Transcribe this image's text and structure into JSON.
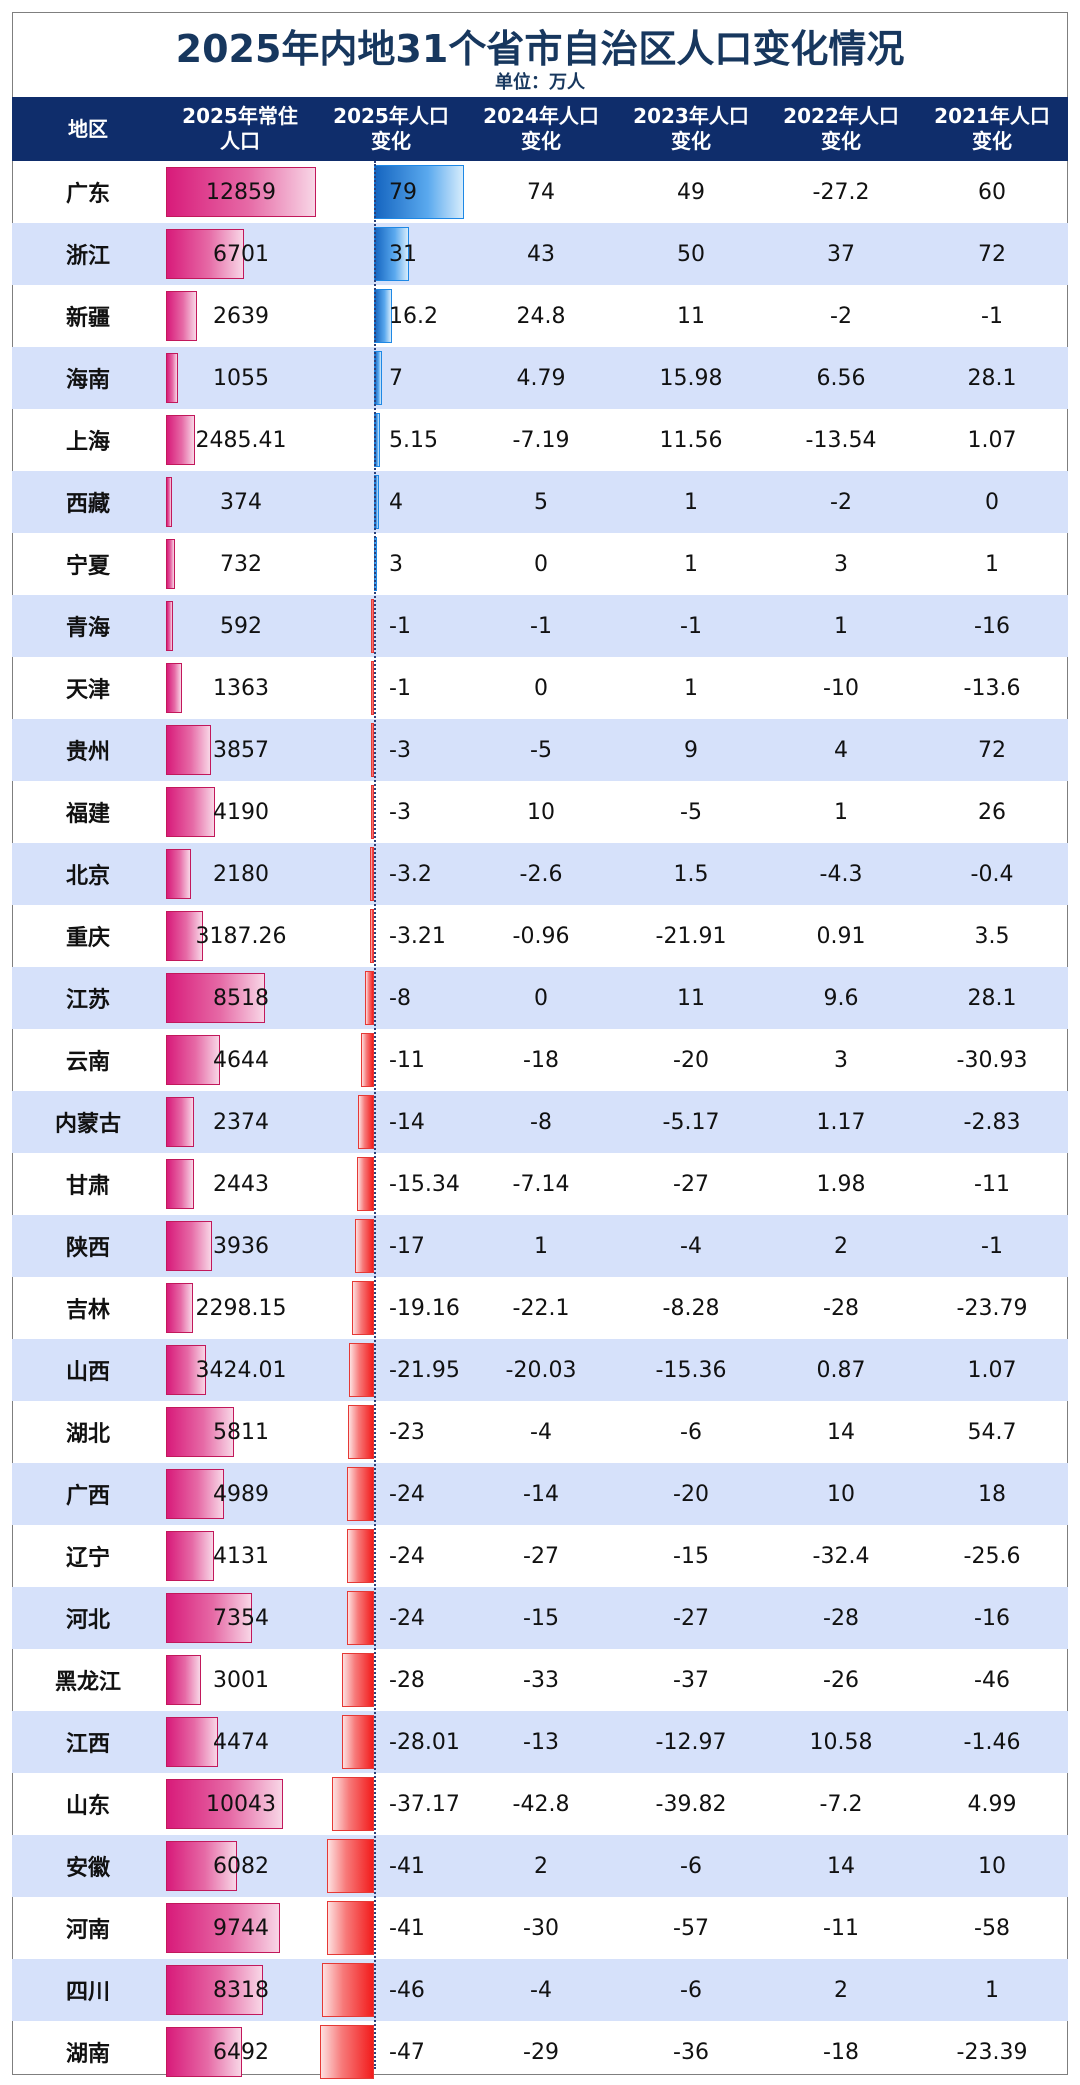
{
  "title": "2025年内地31个省市自治区人口变化情况",
  "unit": "单位：万人",
  "headers": [
    "地区",
    "2025年常住\n人口",
    "2025年人口\n变化",
    "2024年人口\n变化",
    "2023年人口\n变化",
    "2022年人口\n变化",
    "2021年人口\n变化"
  ],
  "colors": {
    "header_bg": "#0f2d6b",
    "title": "#17375e",
    "row_alt": "#d6e1fa",
    "pop_bar": "#d81b7a",
    "pos_bar": "#1e88e5",
    "neg_bar": "#f21c1c"
  },
  "chart_data": {
    "type": "table",
    "columns": [
      "地区",
      "2025年常住人口",
      "2025年人口变化",
      "2024年人口变化",
      "2023年人口变化",
      "2022年人口变化",
      "2021年人口变化"
    ],
    "rows": [
      [
        "广东",
        "12859",
        "79",
        "74",
        "49",
        "-27.2",
        "60"
      ],
      [
        "浙江",
        "6701",
        "31",
        "43",
        "50",
        "37",
        "72"
      ],
      [
        "新疆",
        "2639",
        "16.2",
        "24.8",
        "11",
        "-2",
        "-1"
      ],
      [
        "海南",
        "1055",
        "7",
        "4.79",
        "15.98",
        "6.56",
        "28.1"
      ],
      [
        "上海",
        "2485.41",
        "5.15",
        "-7.19",
        "11.56",
        "-13.54",
        "1.07"
      ],
      [
        "西藏",
        "374",
        "4",
        "5",
        "1",
        "-2",
        "0"
      ],
      [
        "宁夏",
        "732",
        "3",
        "0",
        "1",
        "3",
        "1"
      ],
      [
        "青海",
        "592",
        "-1",
        "-1",
        "-1",
        "1",
        "-16"
      ],
      [
        "天津",
        "1363",
        "-1",
        "0",
        "1",
        "-10",
        "-13.6"
      ],
      [
        "贵州",
        "3857",
        "-3",
        "-5",
        "9",
        "4",
        "72"
      ],
      [
        "福建",
        "4190",
        "-3",
        "10",
        "-5",
        "1",
        "26"
      ],
      [
        "北京",
        "2180",
        "-3.2",
        "-2.6",
        "1.5",
        "-4.3",
        "-0.4"
      ],
      [
        "重庆",
        "3187.26",
        "-3.21",
        "-0.96",
        "-21.91",
        "0.91",
        "3.5"
      ],
      [
        "江苏",
        "8518",
        "-8",
        "0",
        "11",
        "9.6",
        "28.1"
      ],
      [
        "云南",
        "4644",
        "-11",
        "-18",
        "-20",
        "3",
        "-30.93"
      ],
      [
        "内蒙古",
        "2374",
        "-14",
        "-8",
        "-5.17",
        "1.17",
        "-2.83"
      ],
      [
        "甘肃",
        "2443",
        "-15.34",
        "-7.14",
        "-27",
        "1.98",
        "-11"
      ],
      [
        "陕西",
        "3936",
        "-17",
        "1",
        "-4",
        "2",
        "-1"
      ],
      [
        "吉林",
        "2298.15",
        "-19.16",
        "-22.1",
        "-8.28",
        "-28",
        "-23.79"
      ],
      [
        "山西",
        "3424.01",
        "-21.95",
        "-20.03",
        "-15.36",
        "0.87",
        "1.07"
      ],
      [
        "湖北",
        "5811",
        "-23",
        "-4",
        "-6",
        "14",
        "54.7"
      ],
      [
        "广西",
        "4989",
        "-24",
        "-14",
        "-20",
        "10",
        "18"
      ],
      [
        "辽宁",
        "4131",
        "-24",
        "-27",
        "-15",
        "-32.4",
        "-25.6"
      ],
      [
        "河北",
        "7354",
        "-24",
        "-15",
        "-27",
        "-28",
        "-16"
      ],
      [
        "黑龙江",
        "3001",
        "-28",
        "-33",
        "-37",
        "-26",
        "-46"
      ],
      [
        "江西",
        "4474",
        "-28.01",
        "-13",
        "-12.97",
        "10.58",
        "-1.46"
      ],
      [
        "山东",
        "10043",
        "-37.17",
        "-42.8",
        "-39.82",
        "-7.2",
        "4.99"
      ],
      [
        "安徽",
        "6082",
        "-41",
        "2",
        "-6",
        "14",
        "10"
      ],
      [
        "河南",
        "9744",
        "-41",
        "-30",
        "-57",
        "-11",
        "-58"
      ],
      [
        "四川",
        "8318",
        "-46",
        "-4",
        "-6",
        "2",
        "1"
      ],
      [
        "湖南",
        "6492",
        "-47",
        "-29",
        "-36",
        "-18",
        "-23.39"
      ]
    ]
  }
}
